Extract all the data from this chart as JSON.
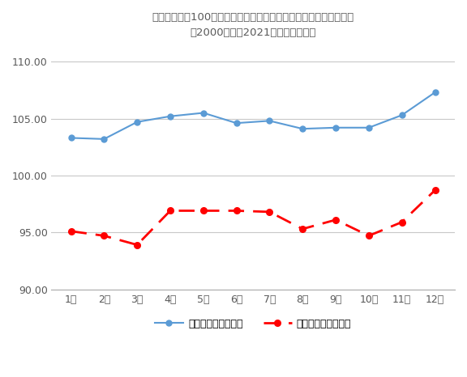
{
  "title_line1": "前年末終値を100と基準化した日経平均株価の月足高値安値の推移",
  "title_line2": "（2000年から2021年までの平均）",
  "months": [
    "1月",
    "2月",
    "3月",
    "4月",
    "5月",
    "6月",
    "7月",
    "8月",
    "9月",
    "10月",
    "11月",
    "12月"
  ],
  "high_values": [
    103.3,
    103.2,
    104.7,
    105.2,
    105.5,
    104.6,
    104.8,
    104.1,
    104.2,
    104.2,
    105.3,
    107.3
  ],
  "low_values": [
    95.1,
    94.7,
    93.9,
    96.9,
    96.9,
    96.9,
    96.8,
    95.3,
    96.1,
    94.7,
    95.9,
    98.7
  ],
  "high_color": "#5b9bd5",
  "low_color": "#ff0000",
  "legend_high": "基準値高値（平均）",
  "legend_low": "基準値安値（平均）",
  "ylim_min": 90.0,
  "ylim_max": 111.5,
  "yticks": [
    90.0,
    95.0,
    100.0,
    105.0,
    110.0
  ],
  "background_color": "#ffffff",
  "grid_color": "#c8c8c8",
  "title_color": "#595959",
  "tick_color": "#595959"
}
